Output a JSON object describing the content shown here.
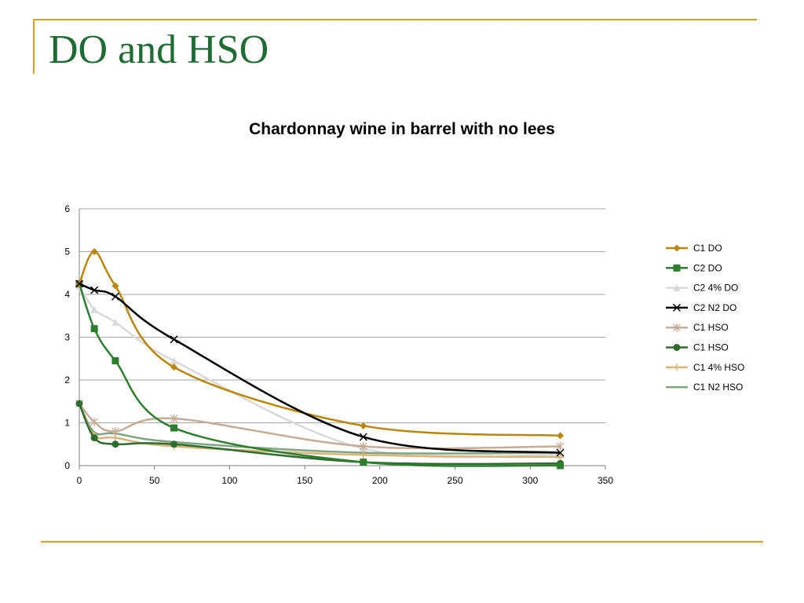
{
  "slide": {
    "title": "DO and HSO"
  },
  "chart_data": {
    "type": "line",
    "title": "Chardonnay wine in barrel with no lees",
    "xlabel": "",
    "ylabel": "",
    "xlim": [
      0,
      350
    ],
    "ylim": [
      0,
      6
    ],
    "x_ticks": [
      "0",
      "50",
      "100",
      "150",
      "200",
      "250",
      "300",
      "350"
    ],
    "y_ticks": [
      "0",
      "1",
      "2",
      "3",
      "4",
      "5",
      "6"
    ],
    "grid": "horizontal",
    "legend_position": "right",
    "series": [
      {
        "name": "C1 DO",
        "color": "#b8860b",
        "marker": "diamond",
        "points": [
          [
            0,
            4.25
          ],
          [
            10,
            5.0
          ],
          [
            24,
            4.2
          ],
          [
            63,
            2.3
          ],
          [
            189,
            0.93
          ],
          [
            320,
            0.7
          ]
        ]
      },
      {
        "name": "C2 DO",
        "color": "#2e7d2e",
        "marker": "square",
        "points": [
          [
            0,
            4.25
          ],
          [
            10,
            3.2
          ],
          [
            24,
            2.45
          ],
          [
            63,
            0.88
          ],
          [
            189,
            0.08
          ],
          [
            320,
            0.0
          ]
        ]
      },
      {
        "name": "C2 4% DO",
        "color": "#d9d9d9",
        "marker": "triangle",
        "points": [
          [
            0,
            4.2
          ],
          [
            10,
            3.65
          ],
          [
            24,
            3.35
          ],
          [
            63,
            2.45
          ],
          [
            189,
            0.4
          ],
          [
            320,
            0.25
          ]
        ]
      },
      {
        "name": "C2 N2 DO",
        "color": "#000000",
        "marker": "x",
        "points": [
          [
            0,
            4.25
          ],
          [
            10,
            4.1
          ],
          [
            24,
            3.95
          ],
          [
            63,
            2.95
          ],
          [
            189,
            0.67
          ],
          [
            320,
            0.3
          ]
        ]
      },
      {
        "name": "C1 HSO",
        "color": "#c4ac96",
        "marker": "star",
        "points": [
          [
            0,
            1.45
          ],
          [
            10,
            1.02
          ],
          [
            24,
            0.8
          ],
          [
            63,
            1.1
          ],
          [
            189,
            0.45
          ],
          [
            320,
            0.45
          ]
        ]
      },
      {
        "name": "C1 HSO",
        "color": "#2e6b2e",
        "marker": "circle",
        "points": [
          [
            0,
            1.45
          ],
          [
            10,
            0.65
          ],
          [
            24,
            0.5
          ],
          [
            63,
            0.5
          ],
          [
            189,
            0.08
          ],
          [
            320,
            0.05
          ]
        ]
      },
      {
        "name": "C1 4% HSO",
        "color": "#d9b47a",
        "marker": "plus",
        "points": [
          [
            0,
            1.45
          ],
          [
            10,
            0.7
          ],
          [
            24,
            0.65
          ],
          [
            63,
            0.45
          ],
          [
            189,
            0.25
          ],
          [
            320,
            0.2
          ]
        ]
      },
      {
        "name": "C1 N2 HSO",
        "color": "#7fa37f",
        "marker": "none",
        "points": [
          [
            0,
            1.45
          ],
          [
            10,
            0.78
          ],
          [
            24,
            0.75
          ],
          [
            63,
            0.55
          ],
          [
            189,
            0.3
          ],
          [
            320,
            0.3
          ]
        ]
      }
    ]
  }
}
